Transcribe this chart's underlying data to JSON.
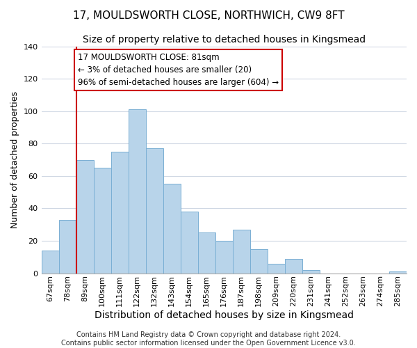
{
  "title": "17, MOULDSWORTH CLOSE, NORTHWICH, CW9 8FT",
  "subtitle": "Size of property relative to detached houses in Kingsmead",
  "xlabel": "Distribution of detached houses by size in Kingsmead",
  "ylabel": "Number of detached properties",
  "bin_labels": [
    "67sqm",
    "78sqm",
    "89sqm",
    "100sqm",
    "111sqm",
    "122sqm",
    "132sqm",
    "143sqm",
    "154sqm",
    "165sqm",
    "176sqm",
    "187sqm",
    "198sqm",
    "209sqm",
    "220sqm",
    "231sqm",
    "241sqm",
    "252sqm",
    "263sqm",
    "274sqm",
    "285sqm"
  ],
  "bar_heights": [
    14,
    33,
    70,
    65,
    75,
    101,
    77,
    55,
    38,
    25,
    20,
    27,
    15,
    6,
    9,
    2,
    0,
    0,
    0,
    0,
    1
  ],
  "bar_color": "#b8d4ea",
  "bar_edge_color": "#7aafd4",
  "vline_x_index": 1,
  "vline_color": "#cc0000",
  "annotation_text_line1": "17 MOULDSWORTH CLOSE: 81sqm",
  "annotation_text_line2": "← 3% of detached houses are smaller (20)",
  "annotation_text_line3": "96% of semi-detached houses are larger (604) →",
  "annotation_box_edgecolor": "#cc0000",
  "annotation_box_facecolor": "#ffffff",
  "ylim": [
    0,
    140
  ],
  "yticks": [
    0,
    20,
    40,
    60,
    80,
    100,
    120,
    140
  ],
  "footer_text": "Contains HM Land Registry data © Crown copyright and database right 2024.\nContains public sector information licensed under the Open Government Licence v3.0.",
  "bg_color": "#ffffff",
  "grid_color": "#d0d8e4",
  "title_fontsize": 11,
  "subtitle_fontsize": 10,
  "xlabel_fontsize": 10,
  "ylabel_fontsize": 9,
  "tick_fontsize": 8,
  "annotation_fontsize": 8.5,
  "footer_fontsize": 7
}
